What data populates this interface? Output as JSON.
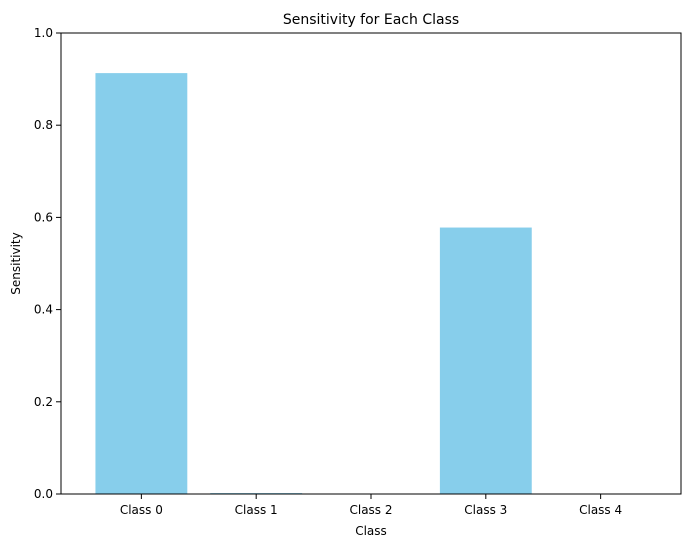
{
  "chart_data": {
    "type": "bar",
    "title": "Sensitivity for Each Class",
    "xlabel": "Class",
    "ylabel": "Sensitivity",
    "categories": [
      "Class 0",
      "Class 1",
      "Class 2",
      "Class 3",
      "Class 4"
    ],
    "values": [
      0.913,
      0.002,
      0.0,
      0.578,
      0.0
    ],
    "ylim": [
      0,
      1
    ],
    "yticks": [
      "0.0",
      "0.2",
      "0.4",
      "0.6",
      "0.8",
      "1.0"
    ],
    "bar_color": "#87ceeb",
    "grid": false,
    "legend": "none"
  }
}
